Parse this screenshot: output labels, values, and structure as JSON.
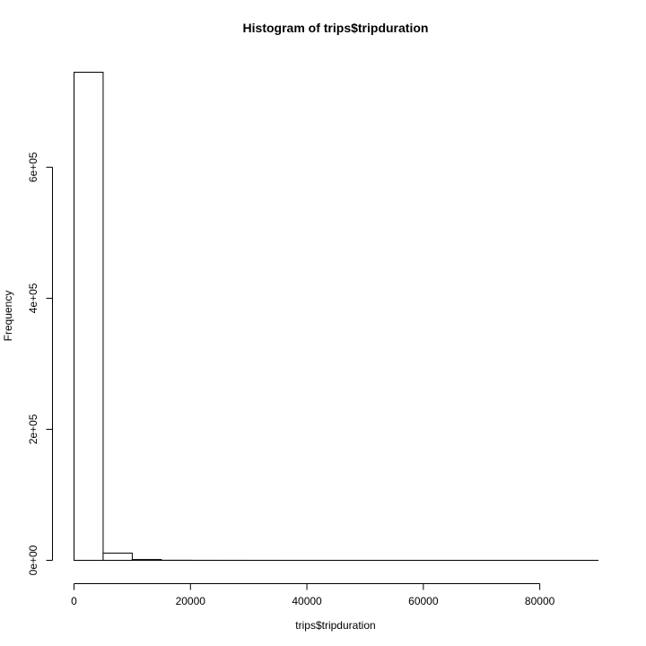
{
  "chart_data": {
    "type": "bar",
    "subtype": "histogram",
    "title": "Histogram of trips$tripduration",
    "xlabel": "trips$tripduration",
    "ylabel": "Frequency",
    "bin_width": 5000,
    "bins": [
      {
        "start": 0,
        "end": 5000,
        "count": 745000
      },
      {
        "start": 5000,
        "end": 10000,
        "count": 11000
      },
      {
        "start": 10000,
        "end": 15000,
        "count": 1200
      },
      {
        "start": 15000,
        "end": 20000,
        "count": 150
      },
      {
        "start": 20000,
        "end": 25000,
        "count": 60
      },
      {
        "start": 25000,
        "end": 30000,
        "count": 30
      },
      {
        "start": 30000,
        "end": 35000,
        "count": 20
      },
      {
        "start": 35000,
        "end": 40000,
        "count": 15
      },
      {
        "start": 40000,
        "end": 45000,
        "count": 10
      },
      {
        "start": 45000,
        "end": 50000,
        "count": 8
      },
      {
        "start": 50000,
        "end": 55000,
        "count": 6
      },
      {
        "start": 55000,
        "end": 60000,
        "count": 5
      },
      {
        "start": 60000,
        "end": 65000,
        "count": 4
      },
      {
        "start": 65000,
        "end": 70000,
        "count": 3
      },
      {
        "start": 70000,
        "end": 75000,
        "count": 3
      },
      {
        "start": 75000,
        "end": 80000,
        "count": 2
      },
      {
        "start": 80000,
        "end": 85000,
        "count": 2
      },
      {
        "start": 85000,
        "end": 90000,
        "count": 1
      }
    ],
    "xlim": [
      0,
      90000
    ],
    "ylim": [
      0,
      745000
    ],
    "x_ticks": [
      0,
      20000,
      40000,
      60000,
      80000
    ],
    "x_tick_labels": [
      "0",
      "20000",
      "40000",
      "60000",
      "80000"
    ],
    "y_ticks": [
      0,
      200000,
      400000,
      600000
    ],
    "y_tick_labels": [
      "0e+00",
      "2e+05",
      "4e+05",
      "6e+05"
    ],
    "grid": false,
    "legend": "none"
  }
}
